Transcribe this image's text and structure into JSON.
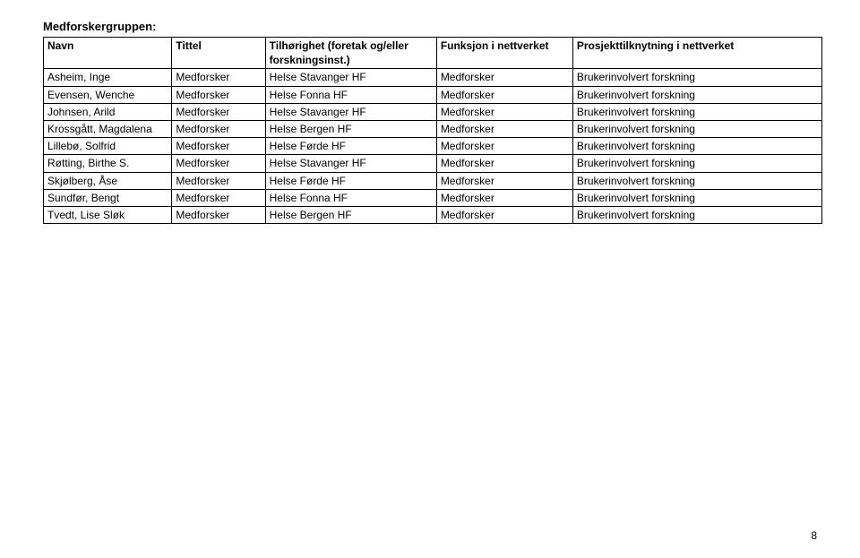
{
  "section_title": "Medforskergruppen:",
  "table": {
    "columns": [
      "Navn",
      "Tittel",
      "Tilhørighet (foretak og/eller forskningsinst.)",
      "Funksjon i nettverket",
      "Prosjekttilknytning i nettverket"
    ],
    "rows": [
      [
        "Asheim, Inge",
        "Medforsker",
        "Helse Stavanger HF",
        "Medforsker",
        "Brukerinvolvert forskning"
      ],
      [
        "Evensen, Wenche",
        "Medforsker",
        "Helse Fonna HF",
        "Medforsker",
        "Brukerinvolvert forskning"
      ],
      [
        "Johnsen, Arild",
        "Medforsker",
        "Helse Stavanger HF",
        "Medforsker",
        "Brukerinvolvert forskning"
      ],
      [
        "Krossgått, Magdalena",
        "Medforsker",
        "Helse Bergen HF",
        "Medforsker",
        "Brukerinvolvert forskning"
      ],
      [
        "Lillebø, Solfrid",
        "Medforsker",
        "Helse Førde HF",
        "Medforsker",
        "Brukerinvolvert forskning"
      ],
      [
        "Røtting, Birthe S.",
        "Medforsker",
        "Helse Stavanger HF",
        "Medforsker",
        "Brukerinvolvert forskning"
      ],
      [
        "Skjølberg, Åse",
        "Medforsker",
        "Helse Førde HF",
        "Medforsker",
        "Brukerinvolvert forskning"
      ],
      [
        "Sundfør, Bengt",
        "Medforsker",
        "Helse Fonna HF",
        "Medforsker",
        "Brukerinvolvert forskning"
      ],
      [
        "Tvedt, Lise Sløk",
        "Medforsker",
        "Helse Bergen HF",
        "Medforsker",
        "Brukerinvolvert forskning"
      ]
    ]
  },
  "page_number": "8",
  "styling": {
    "background_color": "#ffffff",
    "text_color": "#000000",
    "border_color": "#000000",
    "font_family": "Verdana",
    "title_fontsize_pt": 10,
    "cell_fontsize_pt": 9,
    "column_widths_pct": [
      16.5,
      12,
      22,
      17.5,
      32
    ]
  }
}
